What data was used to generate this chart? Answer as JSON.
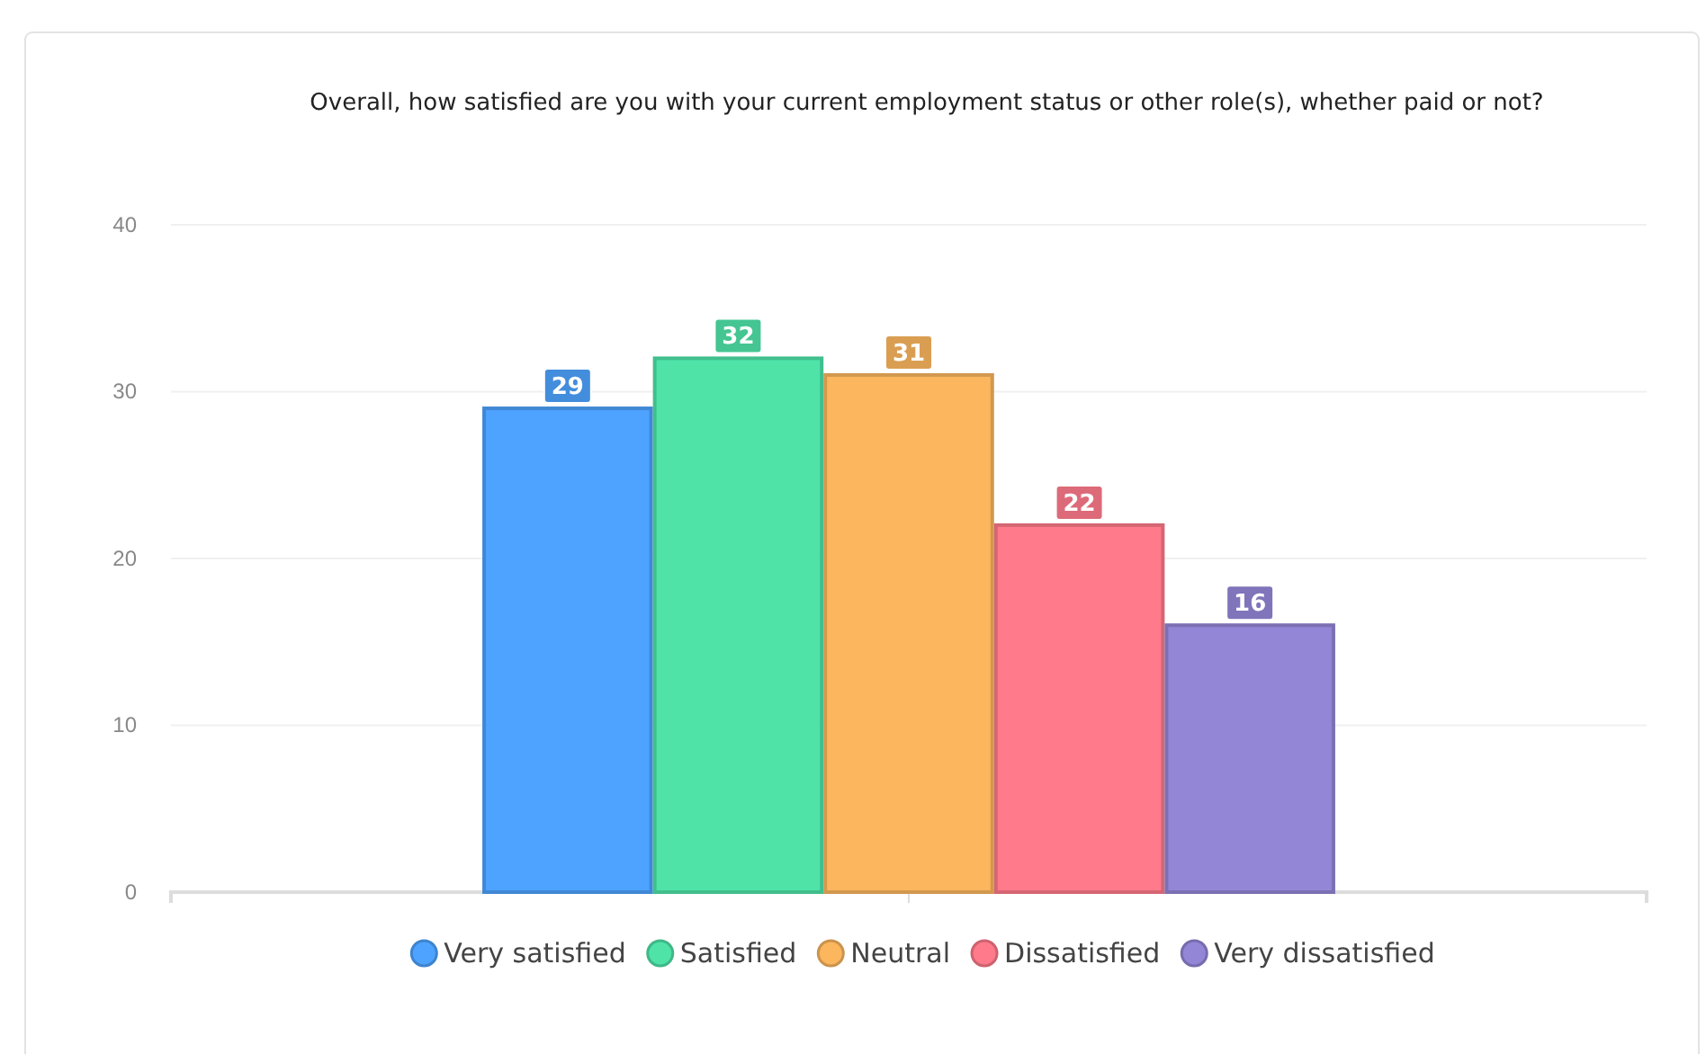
{
  "chart_data": {
    "type": "bar",
    "title": "Overall, how satisfied are you with your current employment status or other role(s), whether paid or not?",
    "categories": [
      null
    ],
    "series": [
      {
        "name": "Very satisfied",
        "color": "#4da3ff",
        "values": [
          29
        ]
      },
      {
        "name": "Satisfied",
        "color": "#4fe3a8",
        "values": [
          32
        ]
      },
      {
        "name": "Neutral",
        "color": "#fbb65e",
        "values": [
          31
        ]
      },
      {
        "name": "Dissatisfied",
        "color": "#ff7a8a",
        "values": [
          22
        ]
      },
      {
        "name": "Very dissatisfied",
        "color": "#9486d6",
        "values": [
          16
        ]
      }
    ],
    "ylim": [
      0,
      40
    ],
    "yticks": [
      0,
      10,
      20,
      30,
      40
    ],
    "grid": "y",
    "legend": "bottom",
    "data_labels": true
  }
}
